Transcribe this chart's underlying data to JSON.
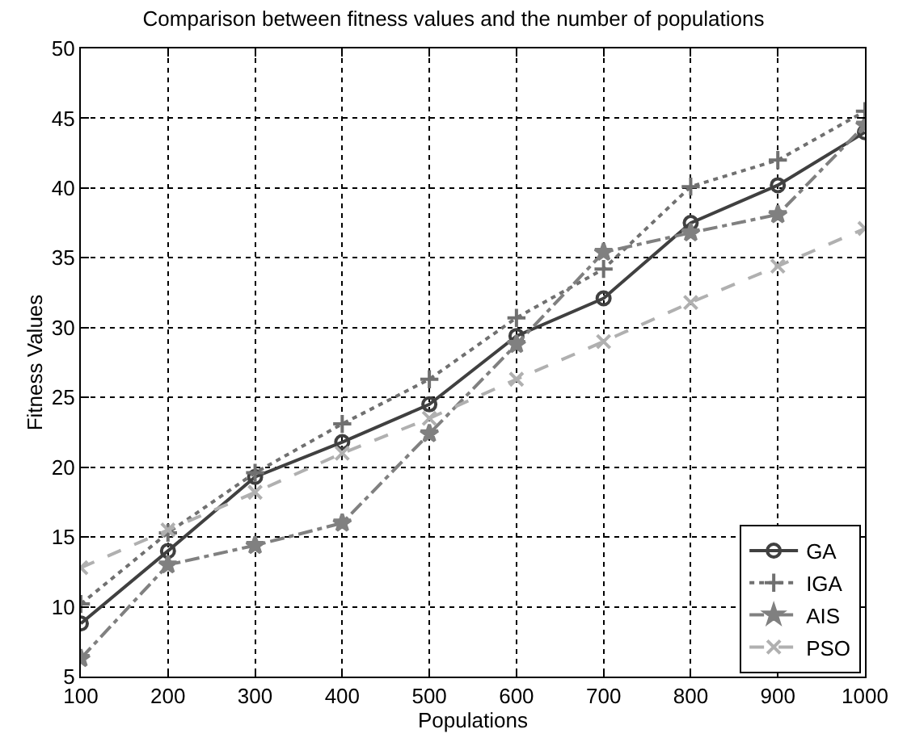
{
  "chart_data": {
    "type": "line",
    "title": "Comparison between fitness values and the number of populations",
    "xlabel": "Populations",
    "ylabel": "Fitness Values",
    "x": [
      100,
      200,
      300,
      400,
      500,
      600,
      700,
      800,
      900,
      1000
    ],
    "series": [
      {
        "name": "GA",
        "color": "#404040",
        "marker": "circle",
        "line_style": "solid",
        "values": [
          8.8,
          14,
          19.3,
          21.8,
          24.5,
          29.4,
          32.1,
          37.5,
          40.2,
          44
        ]
      },
      {
        "name": "IGA",
        "color": "#707070",
        "marker": "cross",
        "line_style": "dotted",
        "values": [
          10.2,
          15.3,
          19.6,
          23.1,
          26.3,
          30.7,
          34.2,
          40.1,
          42,
          45.5
        ]
      },
      {
        "name": "AIS",
        "color": "#808080",
        "marker": "star",
        "line_style": "dashdot",
        "values": [
          6.3,
          13,
          14.4,
          16,
          22.4,
          28.8,
          35.4,
          36.8,
          38.1,
          44.5
        ]
      },
      {
        "name": "PSO",
        "color": "#b0b0b0",
        "marker": "x",
        "line_style": "dashed",
        "values": [
          12.8,
          15.5,
          18.2,
          21,
          23.5,
          26.3,
          29,
          31.8,
          34.4,
          37.1
        ]
      }
    ],
    "xlim": [
      100,
      1000
    ],
    "xticks": [
      100,
      200,
      300,
      400,
      500,
      600,
      700,
      800,
      900,
      1000
    ],
    "ylim": [
      5,
      50
    ],
    "yticks": [
      5,
      10,
      15,
      20,
      25,
      30,
      35,
      40,
      45,
      50
    ],
    "grid": true,
    "legend": "bottom right"
  }
}
